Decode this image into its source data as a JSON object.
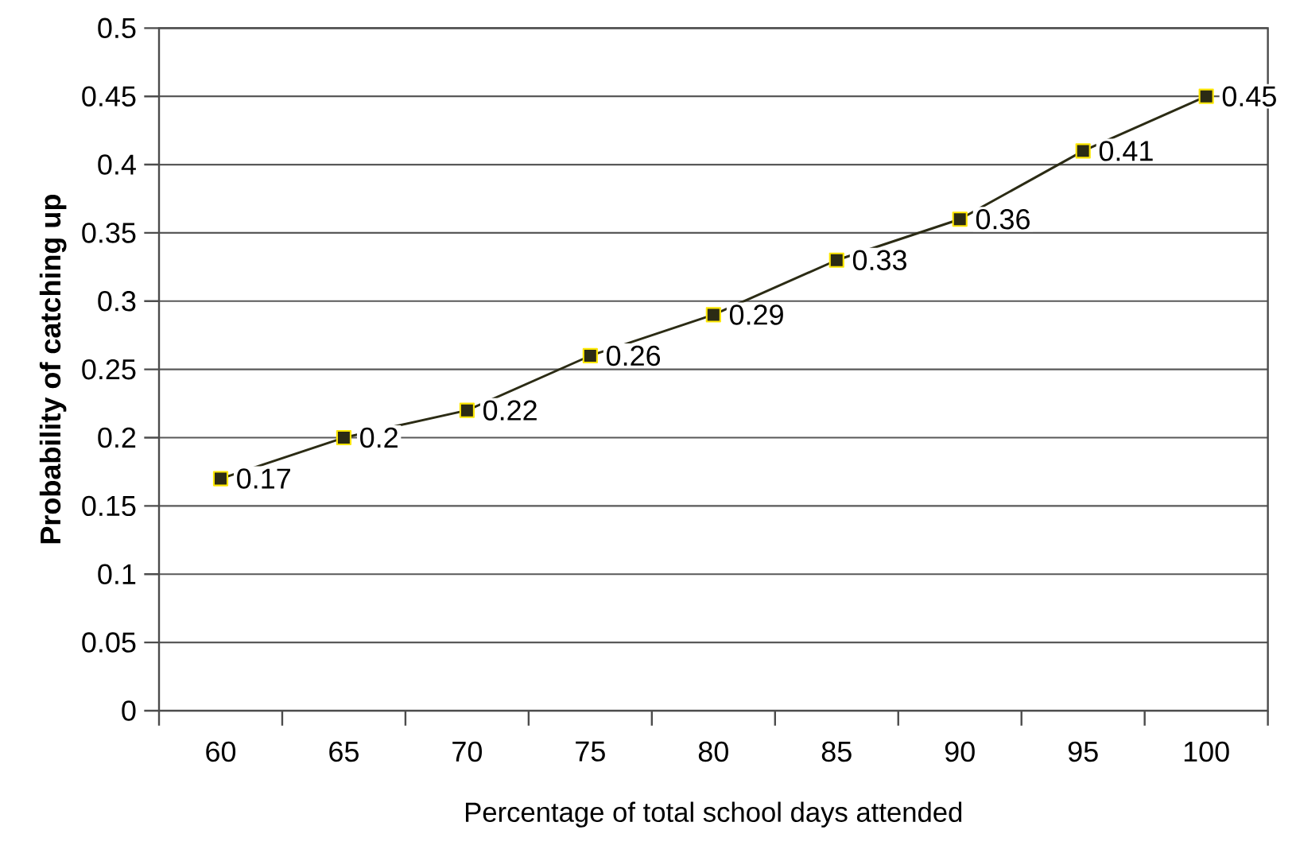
{
  "chart_data": {
    "type": "line",
    "xlabel": "Percentage of total school days attended",
    "ylabel": "Probability of catching up",
    "categories": [
      "60",
      "65",
      "70",
      "75",
      "80",
      "85",
      "90",
      "95",
      "100"
    ],
    "values": [
      0.17,
      0.2,
      0.22,
      0.26,
      0.29,
      0.33,
      0.36,
      0.41,
      0.45
    ],
    "color": "#2b2b14",
    "marker": "square",
    "line_style": "solid",
    "data_labels": true,
    "grid": "y",
    "ylim": [
      0,
      0.5
    ],
    "yticks": [
      0,
      0.05,
      0.1,
      0.15,
      0.2,
      0.25,
      0.3,
      0.35,
      0.4,
      0.45,
      0.5
    ]
  }
}
